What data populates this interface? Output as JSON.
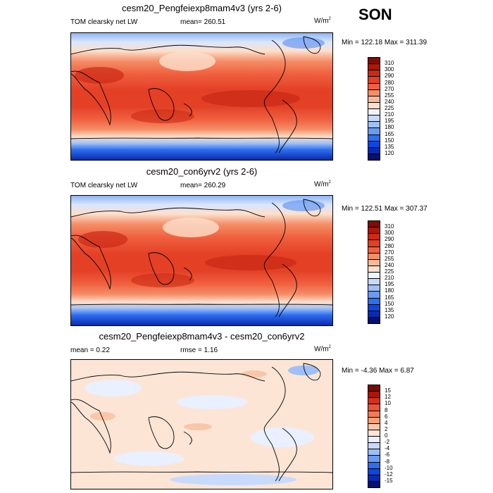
{
  "season": "SON",
  "colors": {
    "full": [
      "#08106e",
      "#0a2ab0",
      "#1045e0",
      "#2e6ef0",
      "#6a9af3",
      "#9ec0f7",
      "#c7dafc",
      "#eef3ff",
      "#fde0cc",
      "#f7b99a",
      "#f58e68",
      "#f0603f",
      "#e34026",
      "#cc2a16",
      "#aa1808",
      "#7e0d04"
    ],
    "diff": [
      "#08106e",
      "#0a2ab0",
      "#1045e0",
      "#2e6ef0",
      "#6a9af3",
      "#9ec0f7",
      "#c7dafc",
      "#e9f0ff",
      "#fde5d6",
      "#f9c6a8",
      "#f6a07c",
      "#f27a55",
      "#e8533a",
      "#d1321f",
      "#a6180a",
      "#7a0b03"
    ]
  },
  "panels": [
    {
      "title": "cesm20_Pengfeiexp8mam4v3 (yrs 2-6)",
      "left_label": "TOM clearsky net LW",
      "center_label": "mean= 260.51",
      "units": "W/m",
      "units_sup": "2",
      "minmax": "Min = 122.18 Max = 311.39"
    },
    {
      "title": "cesm20_con6yrv2 (yrs 2-6)",
      "left_label": "TOM clearsky net LW",
      "center_label": "mean= 260.29",
      "units": "W/m",
      "units_sup": "2",
      "minmax": "Min = 122.51 Max = 307.37"
    },
    {
      "title": "cesm20_Pengfeiexp8mam4v3 - cesm20_con6yrv2",
      "left_label": "mean =   0.22",
      "center_label": "rmse =   1.16",
      "units": "W/m",
      "units_sup": "2",
      "minmax": "Min =  -4.36 Max =   6.87"
    }
  ],
  "chart_data": [
    {
      "type": "heatmap",
      "title": "cesm20_Pengfeiexp8mam4v3 (yrs 2-6)",
      "field": "TOM clearsky net LW",
      "units": "W/m2",
      "mean": 260.51,
      "min": 122.18,
      "max": 311.39,
      "colorbar_levels": [
        "310",
        "300",
        "290",
        "280",
        "270",
        "255",
        "240",
        "225",
        "210",
        "195",
        "180",
        "165",
        "150",
        "135",
        "120"
      ]
    },
    {
      "type": "heatmap",
      "title": "cesm20_con6yrv2 (yrs 2-6)",
      "field": "TOM clearsky net LW",
      "units": "W/m2",
      "mean": 260.29,
      "min": 122.51,
      "max": 307.37,
      "colorbar_levels": [
        "310",
        "300",
        "290",
        "280",
        "270",
        "255",
        "240",
        "225",
        "210",
        "195",
        "180",
        "165",
        "150",
        "135",
        "120"
      ]
    },
    {
      "type": "heatmap",
      "title": "cesm20_Pengfeiexp8mam4v3 - cesm20_con6yrv2",
      "field": "difference",
      "units": "W/m2",
      "mean": 0.22,
      "rmse": 1.16,
      "min": -4.36,
      "max": 6.87,
      "colorbar_levels": [
        "15",
        "12",
        "10",
        "8",
        "6",
        "4",
        "2",
        "0",
        "-2",
        "-4",
        "-6",
        "-8",
        "-10",
        "-12",
        "-15"
      ]
    }
  ]
}
